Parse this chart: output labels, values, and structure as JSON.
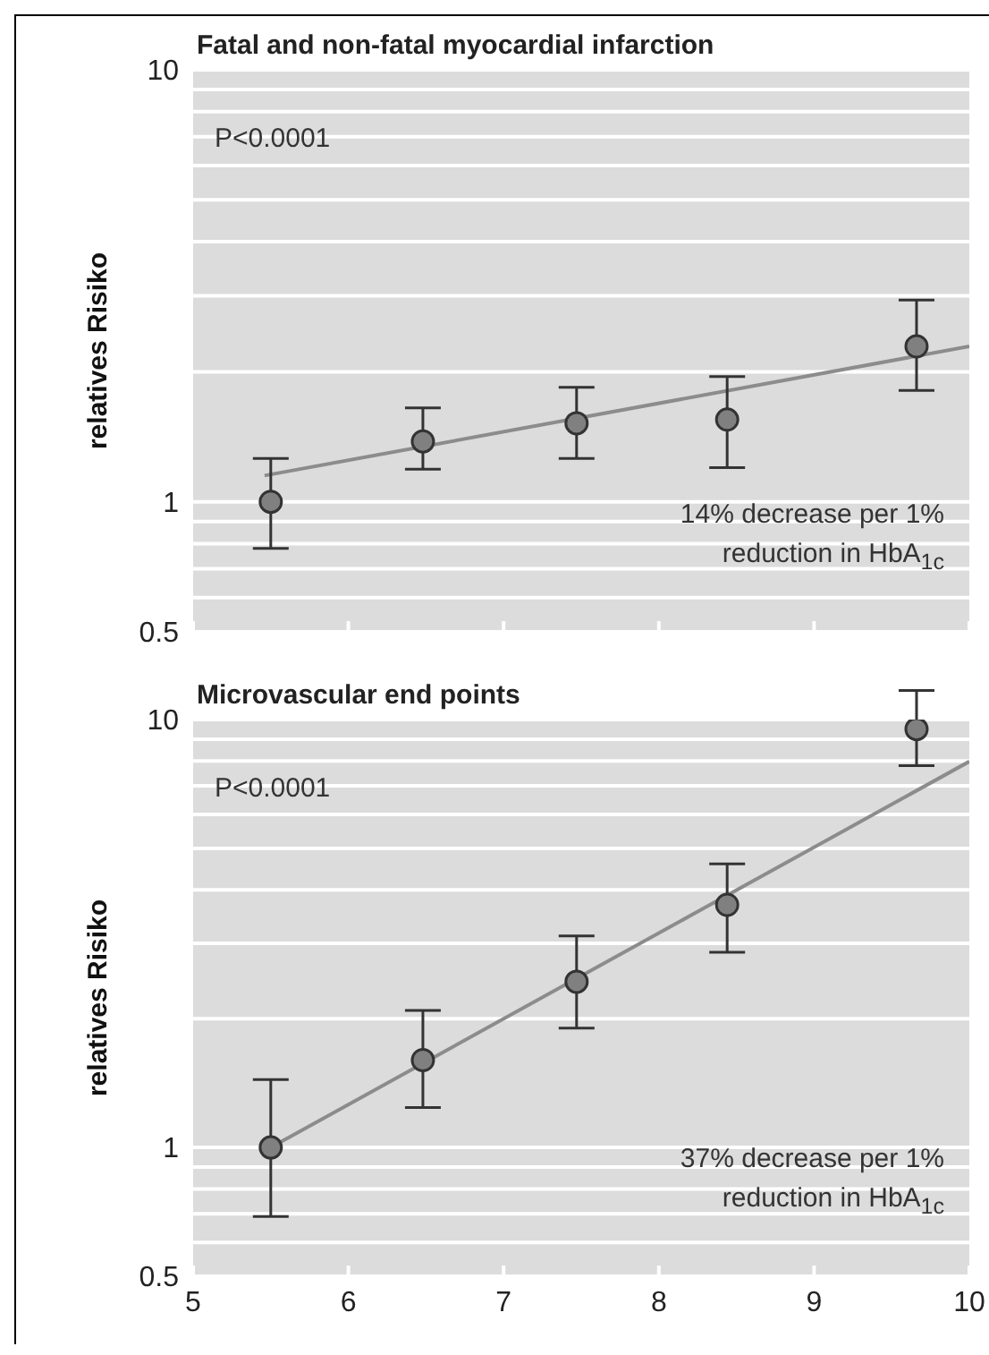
{
  "chart_data": [
    {
      "type": "scatter",
      "title": "Fatal and non-fatal myocardial infarction",
      "ylabel": "relatives Risiko",
      "annotations": [
        "P<0.0001",
        "14% decrease per 1% reduction in HbA$_{1c}$"
      ],
      "xlim": [
        5,
        10
      ],
      "xticks": [
        5,
        6,
        7,
        8,
        9,
        10
      ],
      "ylim": [
        0.5,
        10
      ],
      "yticks": [
        0.5,
        {
          "value": 0.6,
          "label": null
        },
        {
          "value": 0.7,
          "label": null
        },
        {
          "value": 0.8,
          "label": null
        },
        {
          "value": 0.9,
          "label": null
        },
        1,
        {
          "value": 2,
          "label": null
        },
        {
          "value": 3,
          "label": null
        },
        {
          "value": 4,
          "label": null
        },
        {
          "value": 5,
          "label": null
        },
        {
          "value": 6,
          "label": null
        },
        {
          "value": 7,
          "label": null
        },
        {
          "value": 8,
          "label": null
        },
        {
          "value": 9,
          "label": null
        },
        10
      ],
      "log": "y",
      "grid": "y",
      "tick_labels": "y",
      "series": [
        {
          "type": "scatter",
          "color": "#808080",
          "marker": "circle",
          "x": [
            5.5,
            6.48,
            7.47,
            8.44,
            9.66
          ],
          "values": [
            1.0,
            1.38,
            1.52,
            1.55,
            2.29
          ],
          "errors": [
            [
              0.78,
              1.26
            ],
            [
              1.19,
              1.65
            ],
            [
              1.26,
              1.84
            ],
            [
              1.2,
              1.95
            ],
            [
              1.81,
              2.93
            ]
          ]
        },
        {
          "type": "line",
          "color": "#8c8c8c",
          "marker": "none",
          "x": [
            5.46,
            10
          ],
          "values": [
            1.15,
            2.29
          ]
        }
      ]
    },
    {
      "type": "scatter",
      "title": "Microvascular end points",
      "ylabel": "relatives Risiko",
      "annotations": [
        "P<0.0001",
        "37% decrease per 1% reduction in HbA$_{1c}$"
      ],
      "xlim": [
        5,
        10
      ],
      "xticks": [
        5,
        6,
        7,
        8,
        9,
        10
      ],
      "ylim": [
        0.5,
        10
      ],
      "yticks": [
        0.5,
        {
          "value": 0.6,
          "label": null
        },
        {
          "value": 0.7,
          "label": null
        },
        {
          "value": 0.8,
          "label": null
        },
        {
          "value": 0.9,
          "label": null
        },
        1,
        {
          "value": 2,
          "label": null
        },
        {
          "value": 3,
          "label": null
        },
        {
          "value": 4,
          "label": null
        },
        {
          "value": 5,
          "label": null
        },
        {
          "value": 6,
          "label": null
        },
        {
          "value": 7,
          "label": null
        },
        {
          "value": 8,
          "label": null
        },
        {
          "value": 9,
          "label": null
        },
        10
      ],
      "log": "y",
      "grid": "y",
      "series": [
        {
          "type": "scatter",
          "color": "#808080",
          "marker": "circle",
          "x": [
            5.5,
            6.48,
            7.47,
            8.44,
            9.66
          ],
          "values": [
            1.0,
            1.6,
            2.44,
            3.69,
            9.5
          ],
          "errors": [
            [
              0.69,
              1.44
            ],
            [
              1.24,
              2.09
            ],
            [
              1.9,
              3.12
            ],
            [
              2.86,
              4.6
            ],
            [
              7.8,
              11.7
            ]
          ]
        },
        {
          "type": "line",
          "color": "#8c8c8c",
          "marker": "none",
          "x": [
            5.5,
            10
          ],
          "values": [
            1.0,
            7.98
          ]
        }
      ]
    }
  ]
}
